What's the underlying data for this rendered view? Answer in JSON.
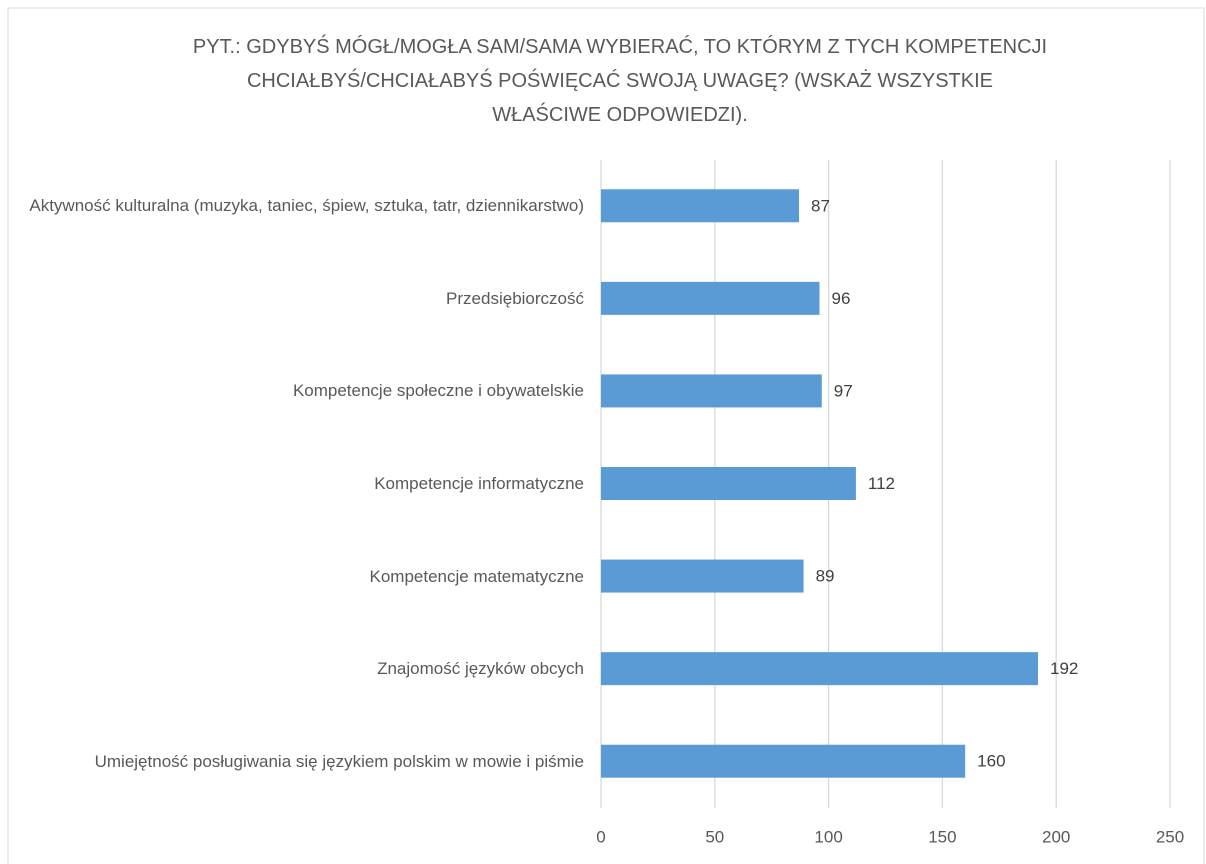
{
  "chart_data": {
    "type": "bar",
    "orientation": "horizontal",
    "title": "PYT.: GDYBYŚ MÓGŁ/MOGŁA SAM/SAMA WYBIERAĆ, TO KTÓRYM Z TYCH KOMPETENCJI CHCIAŁBYŚ/CHCIAŁABYŚ POŚWIĘCAĆ SWOJĄ UWAGĘ? (WSKAŻ WSZYSTKIE WŁAŚCIWE ODPOWIEDZI).",
    "categories": [
      "Aktywność kulturalna (muzyka, taniec, śpiew, sztuka, tatr, dziennikarstwo)",
      "Przedsiębiorczość",
      "Kompetencje społeczne i obywatelskie",
      "Kompetencje informatyczne",
      "Kompetencje matematyczne",
      "Znajomość języków obcych",
      "Umiejętność posługiwania się językiem polskim w mowie i piśmie"
    ],
    "values": [
      87,
      96,
      97,
      112,
      89,
      192,
      160
    ],
    "color": "#5b9bd5",
    "xlim": [
      0,
      250
    ],
    "xticks": [
      0,
      50,
      100,
      150,
      200,
      250
    ],
    "grid": true
  }
}
